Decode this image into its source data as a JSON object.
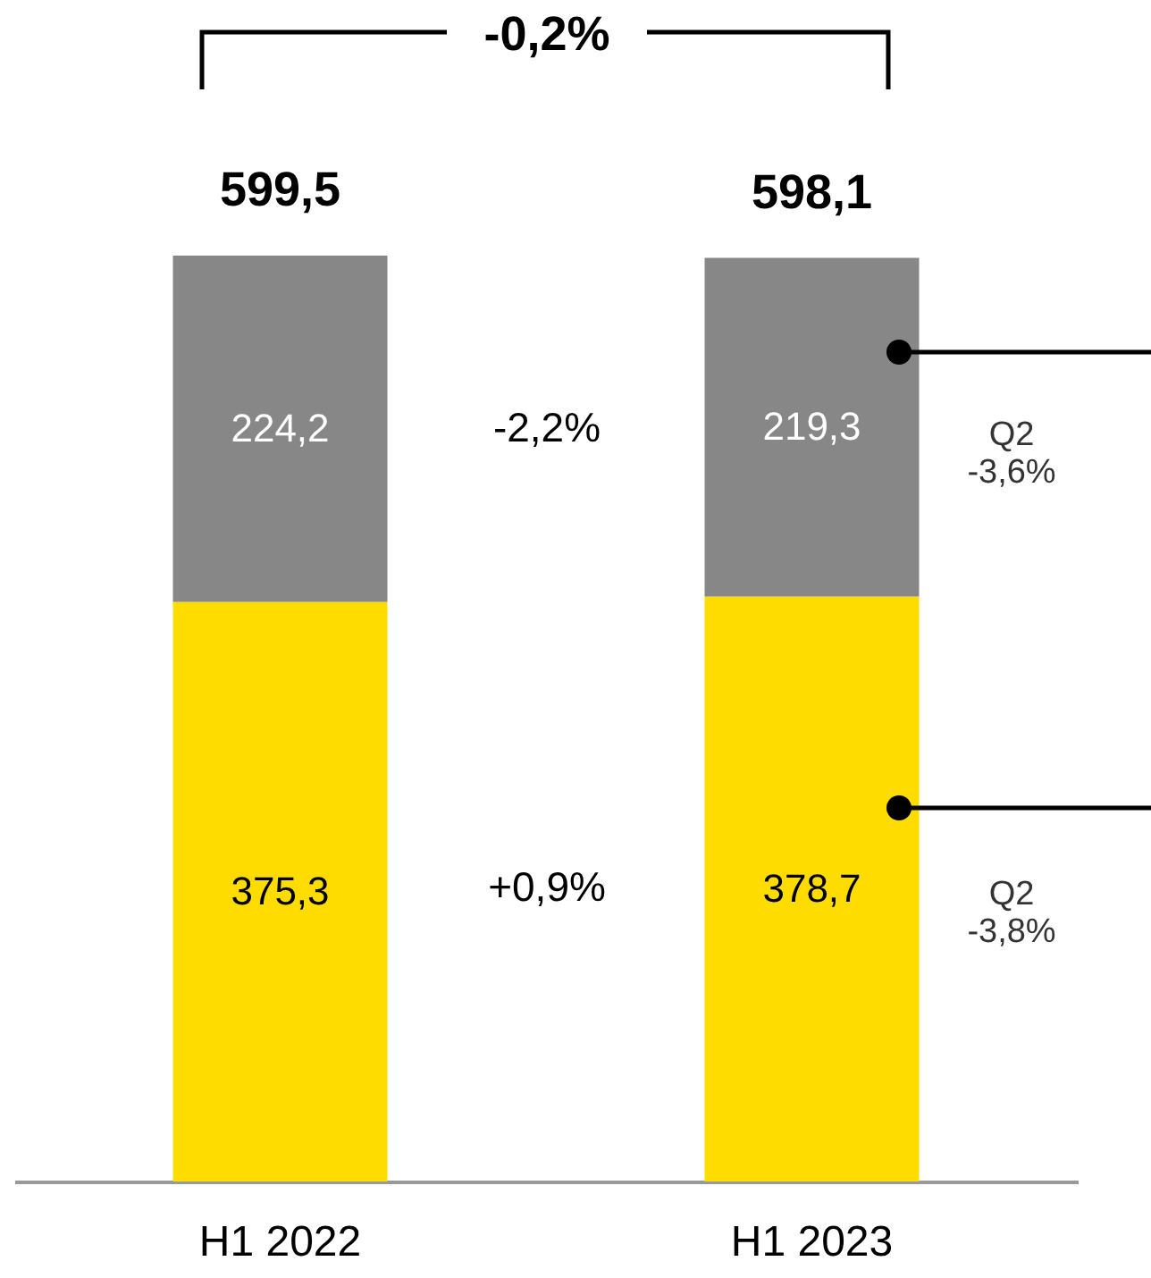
{
  "chart_data": {
    "type": "bar",
    "stacked": true,
    "categories": [
      "H1 2022",
      "H1 2023"
    ],
    "series": [
      {
        "name": null,
        "color": "#ffdc00",
        "values": [
          375.3,
          378.7
        ],
        "value_labels": [
          "375,3",
          "378,7"
        ]
      },
      {
        "name": null,
        "color": "#878787",
        "values": [
          224.2,
          219.3
        ],
        "value_labels": [
          "224,2",
          "219,3"
        ]
      }
    ],
    "totals": [
      "599,5",
      "598,1"
    ],
    "annotations": [
      "-0,2%",
      "-2,2%",
      "+0,9%",
      "Q2\n-3,6%",
      "Q2\n-3,8%"
    ],
    "data_labels": false
  }
}
